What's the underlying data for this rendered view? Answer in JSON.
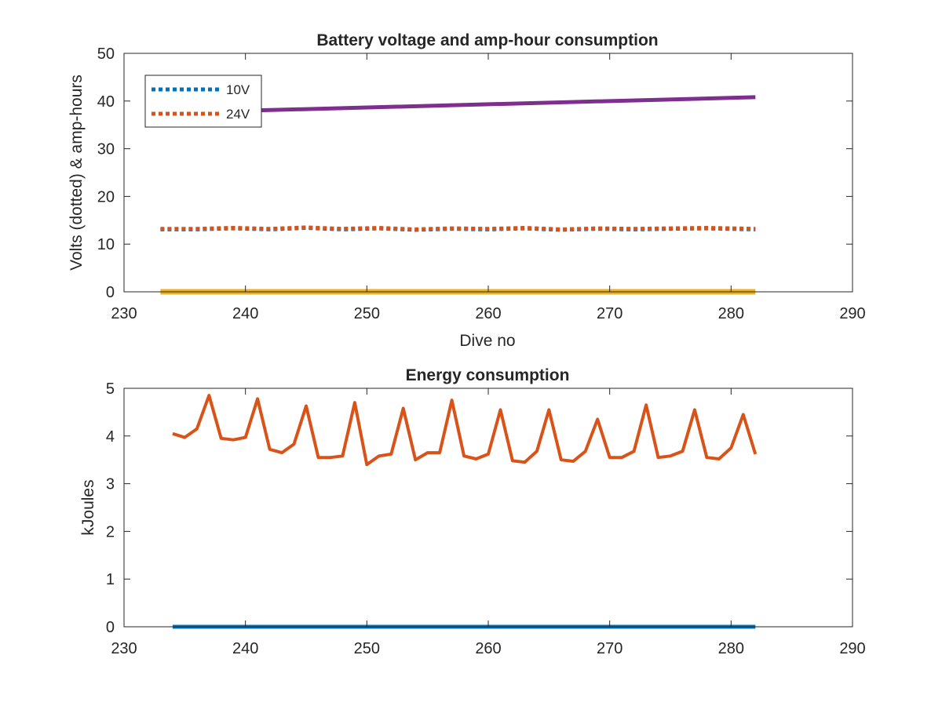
{
  "chart_data": [
    {
      "type": "line",
      "title": "Battery voltage and amp-hour consumption",
      "xlabel": "Dive no",
      "ylabel": "Volts (dotted) & amp-hours",
      "xlim": [
        230,
        290
      ],
      "ylim": [
        0,
        50
      ],
      "xticks": [
        230,
        240,
        250,
        260,
        270,
        280,
        290
      ],
      "yticks": [
        0,
        10,
        20,
        30,
        40,
        50
      ],
      "grid": false,
      "legend_position": "top-left",
      "series": [
        {
          "name": "10V",
          "style": "dotted",
          "color": "#0072BD",
          "x": [
            233,
            236,
            239,
            242,
            245,
            248,
            251,
            254,
            257,
            260,
            263,
            266,
            269,
            272,
            275,
            278,
            282
          ],
          "y": [
            13.1,
            13.1,
            13.3,
            13.1,
            13.4,
            13.1,
            13.3,
            13.0,
            13.2,
            13.1,
            13.3,
            13.0,
            13.2,
            13.1,
            13.2,
            13.3,
            13.1
          ]
        },
        {
          "name": "24V",
          "style": "dotted",
          "color": "#D95319",
          "x": [
            233,
            236,
            239,
            242,
            245,
            248,
            251,
            254,
            257,
            260,
            263,
            266,
            269,
            272,
            275,
            278,
            282
          ],
          "y": [
            13.2,
            13.2,
            13.4,
            13.2,
            13.5,
            13.2,
            13.4,
            13.1,
            13.3,
            13.2,
            13.4,
            13.1,
            13.3,
            13.2,
            13.3,
            13.4,
            13.2
          ]
        },
        {
          "style": "solid",
          "color": "#7E2F8E",
          "x": [
            233,
            282
          ],
          "y": [
            37.5,
            40.8
          ]
        },
        {
          "style": "solid",
          "color": "#EDB120",
          "x": [
            233,
            282
          ],
          "y": [
            0,
            0
          ]
        }
      ]
    },
    {
      "type": "line",
      "title": "Energy consumption",
      "xlabel": "",
      "ylabel": "kJoules",
      "xlim": [
        230,
        290
      ],
      "ylim": [
        0,
        5
      ],
      "xticks": [
        230,
        240,
        250,
        260,
        270,
        280,
        290
      ],
      "yticks": [
        0,
        1,
        2,
        3,
        4,
        5
      ],
      "grid": false,
      "series": [
        {
          "style": "solid",
          "color": "#D95319",
          "x": [
            234,
            235,
            236,
            237,
            238,
            239,
            240,
            241,
            242,
            243,
            244,
            245,
            246,
            247,
            248,
            249,
            250,
            251,
            252,
            253,
            254,
            255,
            256,
            257,
            258,
            259,
            260,
            261,
            262,
            263,
            264,
            265,
            266,
            267,
            268,
            269,
            270,
            271,
            272,
            273,
            274,
            275,
            276,
            277,
            278,
            279,
            280,
            281,
            282
          ],
          "y": [
            4.05,
            3.97,
            4.15,
            4.85,
            3.95,
            3.92,
            3.97,
            4.78,
            3.72,
            3.65,
            3.83,
            4.63,
            3.55,
            3.55,
            3.58,
            4.7,
            3.4,
            3.58,
            3.62,
            4.58,
            3.5,
            3.65,
            3.65,
            4.75,
            3.58,
            3.52,
            3.62,
            4.55,
            3.48,
            3.45,
            3.68,
            4.55,
            3.5,
            3.47,
            3.68,
            4.35,
            3.55,
            3.55,
            3.68,
            4.65,
            3.55,
            3.58,
            3.68,
            4.55,
            3.55,
            3.52,
            3.75,
            4.45,
            3.62
          ]
        },
        {
          "style": "solid",
          "color": "#0072BD",
          "x": [
            234,
            282
          ],
          "y": [
            0,
            0
          ]
        }
      ]
    }
  ]
}
